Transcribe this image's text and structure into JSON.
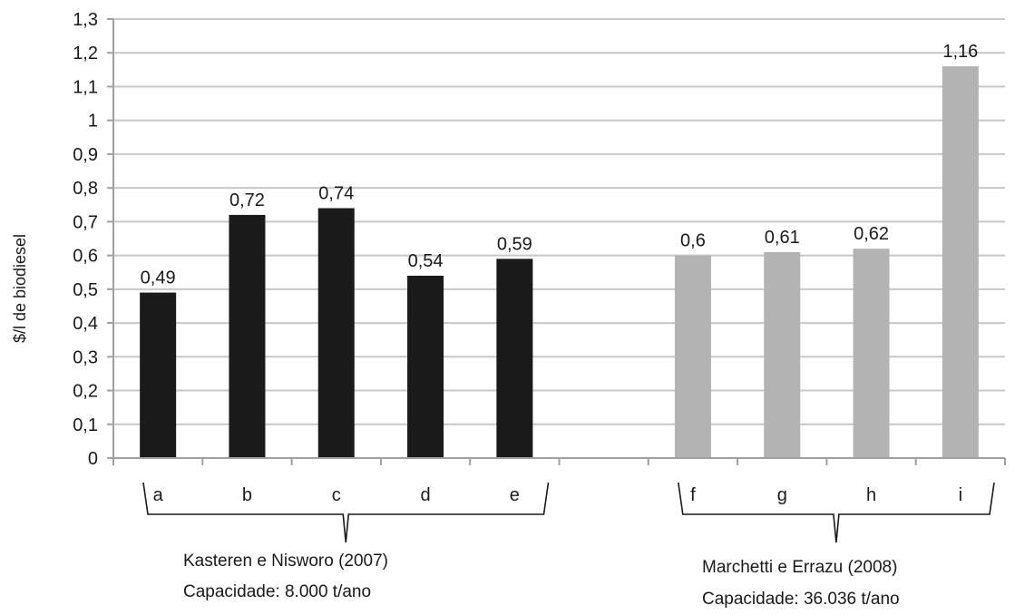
{
  "chart_data": {
    "type": "bar",
    "categories": [
      "a",
      "b",
      "c",
      "d",
      "e",
      "",
      "f",
      "g",
      "h",
      "i"
    ],
    "values": [
      0.49,
      0.72,
      0.74,
      0.54,
      0.59,
      null,
      0.6,
      0.61,
      0.62,
      1.16
    ],
    "data_labels": [
      "0,49",
      "0,72",
      "0,74",
      "0,54",
      "0,59",
      "",
      "0,6",
      "0,61",
      "0,62",
      "1,16"
    ],
    "ylabel": "$/l de biodiesel",
    "ylim": [
      0,
      1.3
    ],
    "y_ticks": [
      0,
      0.1,
      0.2,
      0.3,
      0.4,
      0.5,
      0.6,
      0.7,
      0.8,
      0.9,
      1,
      1.1,
      1.2,
      1.3
    ],
    "y_tick_labels": [
      "0",
      "0,1",
      "0,2",
      "0,3",
      "0,4",
      "0,5",
      "0,6",
      "0,7",
      "0,8",
      "0,9",
      "1",
      "1,1",
      "1,2",
      "1,3"
    ],
    "grid": true,
    "groups": [
      {
        "name": "Kasteren e Nisworo (2007)",
        "capacity": "Capacidade: 8.000 t/ano",
        "categories": [
          "a",
          "b",
          "c",
          "d",
          "e"
        ],
        "color": "#1a1a1a"
      },
      {
        "name": "Marchetti e Errazu (2008)",
        "capacity": "Capacidade: 36.036 t/ano",
        "categories": [
          "f",
          "g",
          "h",
          "i"
        ],
        "color": "#b3b3b3"
      }
    ]
  }
}
